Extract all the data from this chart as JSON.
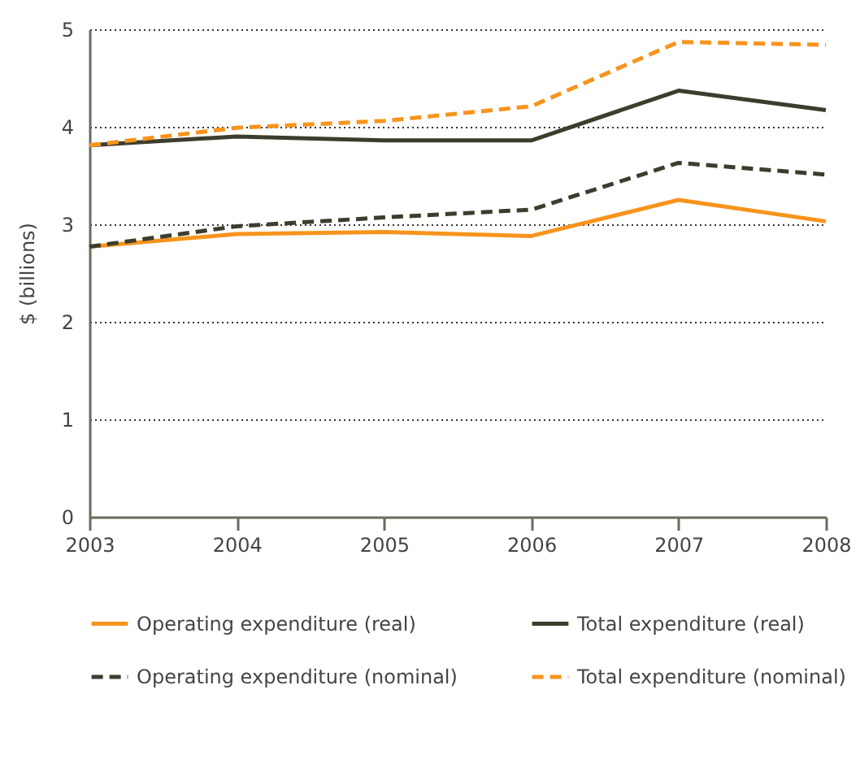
{
  "chart_data": {
    "type": "line",
    "ylabel": "$ (billions)",
    "x": [
      2003,
      2004,
      2005,
      2006,
      2007,
      2008
    ],
    "xlim": [
      2003,
      2008
    ],
    "xticks": [
      2003,
      2004,
      2005,
      2006,
      2007,
      2008
    ],
    "ylim": [
      0,
      5
    ],
    "yticks": [
      0,
      1,
      2,
      3,
      4,
      5
    ],
    "grid": "y",
    "legend": "bottom",
    "series": [
      {
        "name": "Operating expenditure (real)",
        "color": "#f7941d",
        "line_style": "solid",
        "values": [
          2.77,
          2.9,
          2.92,
          2.88,
          3.25,
          3.03
        ]
      },
      {
        "name": "Total expenditure (real)",
        "color": "#3d3d2e",
        "line_style": "solid",
        "values": [
          3.81,
          3.9,
          3.86,
          3.86,
          4.37,
          4.17
        ]
      },
      {
        "name": "Operating expenditure (nominal)",
        "color": "#3d3d2e",
        "line_style": "dashed",
        "values": [
          2.77,
          2.98,
          3.07,
          3.15,
          3.63,
          3.51
        ]
      },
      {
        "name": "Total expenditure (nominal)",
        "color": "#f7941d",
        "line_style": "dashed",
        "values": [
          3.81,
          3.99,
          4.06,
          4.21,
          4.87,
          4.84
        ]
      }
    ]
  }
}
